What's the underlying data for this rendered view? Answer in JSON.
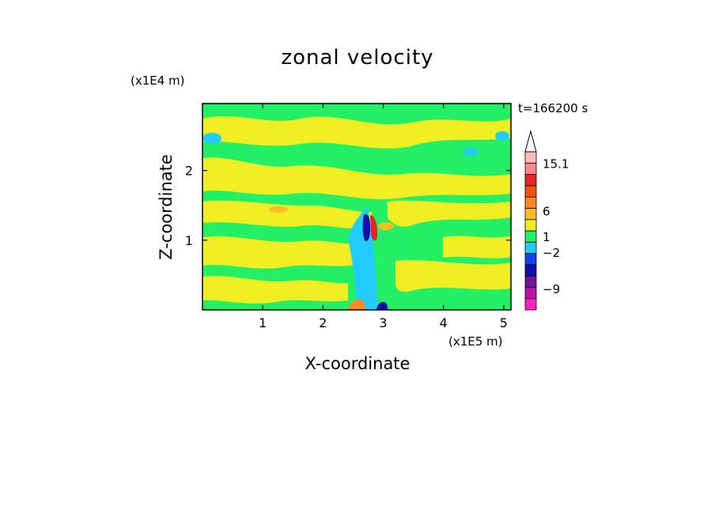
{
  "chart_data": {
    "type": "heatmap",
    "title": "zonal velocity",
    "xlabel": "X-coordinate",
    "ylabel": "Z-coordinate",
    "x_unit_label": "(x1E5 m)",
    "y_unit_label": "(x1E4 m)",
    "time_label": "t=166200 s",
    "xlim": [
      0,
      5.12
    ],
    "ylim": [
      0,
      2.96
    ],
    "x_ticks": [
      1,
      2,
      3,
      4,
      5
    ],
    "y_ticks": [
      1,
      2
    ],
    "colorbar": {
      "labels": [
        {
          "text": "15.1",
          "value": 15.1
        },
        {
          "text": "6",
          "value": 6
        },
        {
          "text": "1",
          "value": 1
        },
        {
          "text": "−2",
          "value": -2
        },
        {
          "text": "−9",
          "value": -9
        }
      ],
      "colors": [
        "#ff22bb",
        "#bb11aa",
        "#771199",
        "#1111aa",
        "#1144ee",
        "#22ccff",
        "#22ee66",
        "#eeee22",
        "#ffbb22",
        "#ff8822",
        "#ee5511",
        "#ee2222",
        "#ff8888",
        "#ffbbbb"
      ]
    },
    "base_field": "green (about −2 to 1) with alternating yellow bands (about 1 to 3)",
    "features": [
      {
        "kind": "jet",
        "description": "strong negative (blue) and positive (red) core near x≈2.8, z≈1.2",
        "x": 2.8,
        "z": 1.2
      },
      {
        "kind": "plume",
        "description": "cyan/light-blue column along x≈2.7–2.9 from surface up to z≈1.3",
        "x": 2.75
      }
    ]
  }
}
